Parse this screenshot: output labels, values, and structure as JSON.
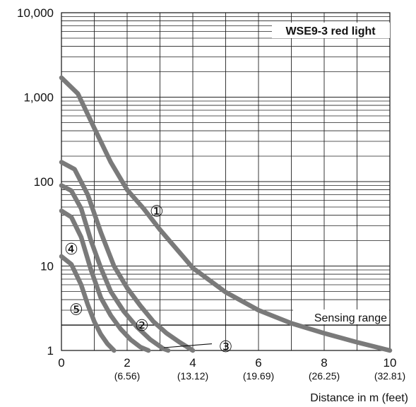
{
  "chart_data": {
    "type": "line",
    "title": "WSE9-3 red light",
    "xlabel": "Distance in m (feet)",
    "ylabel": "",
    "y_scale": "log",
    "xlim": [
      0,
      10
    ],
    "ylim": [
      1,
      10000
    ],
    "grid": true,
    "x_ticks": [
      {
        "value": 0,
        "label": "0",
        "sub": ""
      },
      {
        "value": 2,
        "label": "2",
        "sub": "(6.56)"
      },
      {
        "value": 4,
        "label": "4",
        "sub": "(13.12)"
      },
      {
        "value": 6,
        "label": "6",
        "sub": "(19.69)"
      },
      {
        "value": 8,
        "label": "8",
        "sub": "(26.25)"
      },
      {
        "value": 10,
        "label": "10",
        "sub": "(32.81)"
      }
    ],
    "y_ticks": [
      {
        "value": 1,
        "label": "1"
      },
      {
        "value": 10,
        "label": "10"
      },
      {
        "value": 100,
        "label": "100"
      },
      {
        "value": 1000,
        "label": "1,000"
      },
      {
        "value": 10000,
        "label": "10,000"
      }
    ],
    "reference_line": {
      "y": 2,
      "label": "Sensing range"
    },
    "series": [
      {
        "name": "①",
        "x": [
          0,
          0.5,
          1,
          1.5,
          2,
          2.5,
          3,
          4,
          5,
          6,
          7,
          8,
          9,
          10
        ],
        "y": [
          1700,
          1100,
          430,
          170,
          80,
          48,
          27,
          9.5,
          4.9,
          3.0,
          2.1,
          1.6,
          1.25,
          1
        ]
      },
      {
        "name": "②",
        "x": [
          0,
          0.4,
          0.8,
          1.2,
          1.6,
          2,
          2.4,
          2.8,
          3.2,
          3.6,
          4
        ],
        "y": [
          170,
          140,
          70,
          25,
          10,
          5.5,
          3.4,
          2.2,
          1.6,
          1.25,
          1
        ]
      },
      {
        "name": "③",
        "x": [
          0,
          0.3,
          0.6,
          0.9,
          1.2,
          1.5,
          1.9,
          2.3,
          2.7,
          3.1,
          3.25
        ],
        "y": [
          90,
          78,
          48,
          20,
          9.5,
          5.0,
          2.9,
          1.9,
          1.35,
          1.05,
          1
        ]
      },
      {
        "name": "④",
        "x": [
          0,
          0.3,
          0.6,
          0.9,
          1.2,
          1.5,
          1.8,
          2.1,
          2.4,
          2.65
        ],
        "y": [
          45,
          38,
          22,
          9.0,
          4.2,
          2.6,
          1.8,
          1.35,
          1.1,
          1
        ]
      },
      {
        "name": "⑤",
        "x": [
          0,
          0.3,
          0.6,
          0.8,
          1.0,
          1.2,
          1.4,
          1.6
        ],
        "y": [
          13,
          10.5,
          6.0,
          3.5,
          2.2,
          1.55,
          1.2,
          1
        ]
      }
    ],
    "annotations": [
      {
        "text": "①",
        "x": 2.9,
        "y": 45
      },
      {
        "text": "②",
        "x": 2.45,
        "y": 2.0
      },
      {
        "text": "③",
        "x": 5.0,
        "y": 1.12
      },
      {
        "text": "④",
        "x": 0.3,
        "y": 16
      },
      {
        "text": "⑤",
        "x": 0.45,
        "y": 3.1
      }
    ]
  }
}
